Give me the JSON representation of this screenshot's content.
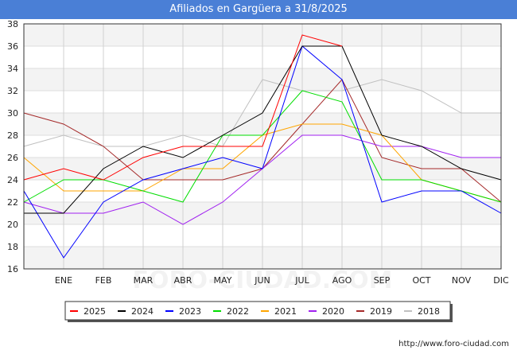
{
  "title": "Afiliados en Gargüera a 31/8/2025",
  "website": "http://www.foro-ciudad.com",
  "watermark": "FORO-CIUDAD.COM",
  "chart_data": {
    "type": "line",
    "categories": [
      "",
      "ENE",
      "FEB",
      "MAR",
      "ABR",
      "MAY",
      "JUN",
      "JUL",
      "AGO",
      "SEP",
      "OCT",
      "NOV",
      "DIC"
    ],
    "ylim": [
      16,
      38
    ],
    "yticks": [
      16,
      18,
      20,
      22,
      24,
      26,
      28,
      30,
      32,
      34,
      36,
      38
    ],
    "grid": true,
    "legend_position": "bottom",
    "series": [
      {
        "name": "2025",
        "color": "#ff0000",
        "values": [
          24,
          25,
          24,
          26,
          27,
          27,
          27,
          37,
          36,
          null,
          null,
          null,
          null
        ]
      },
      {
        "name": "2024",
        "color": "#000000",
        "values": [
          21,
          21,
          25,
          27,
          26,
          28,
          30,
          36,
          36,
          28,
          27,
          25,
          24
        ]
      },
      {
        "name": "2023",
        "color": "#0000ff",
        "values": [
          23,
          17,
          22,
          24,
          25,
          26,
          25,
          36,
          33,
          22,
          23,
          23,
          21
        ]
      },
      {
        "name": "2022",
        "color": "#00dd00",
        "values": [
          22,
          24,
          24,
          23,
          22,
          28,
          28,
          32,
          31,
          24,
          24,
          23,
          22
        ]
      },
      {
        "name": "2021",
        "color": "#ffa500",
        "values": [
          26,
          23,
          23,
          23,
          25,
          25,
          28,
          29,
          29,
          28,
          24,
          23,
          22
        ]
      },
      {
        "name": "2020",
        "color": "#a020f0",
        "values": [
          22,
          21,
          21,
          22,
          20,
          22,
          25,
          28,
          28,
          27,
          27,
          26,
          26
        ]
      },
      {
        "name": "2019",
        "color": "#a52a2a",
        "values": [
          30,
          29,
          27,
          24,
          24,
          24,
          25,
          29,
          33,
          26,
          25,
          25,
          22
        ]
      },
      {
        "name": "2018",
        "color": "#c0c0c0",
        "values": [
          27,
          28,
          27,
          27,
          28,
          27,
          33,
          32,
          32,
          33,
          32,
          30,
          30
        ]
      }
    ]
  }
}
